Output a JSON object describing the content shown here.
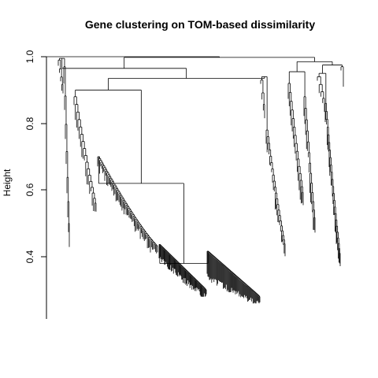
{
  "chart_data": {
    "type": "dendrogram",
    "title": "Gene clustering on TOM-based dissimilarity",
    "xlabel": "",
    "ylabel": "Height",
    "ylim": [
      0.2,
      1.0
    ],
    "yticks": [
      0.4,
      0.6,
      0.8,
      1.0
    ],
    "ytick_labels": [
      "0.4",
      "0.6",
      "0.8",
      "1.0"
    ],
    "grid": false,
    "legend": "none",
    "line_color": "#000000",
    "clusters": [
      {
        "name": "",
        "merge_height": 0.95,
        "floor": 0.45,
        "n_leaves": 14
      },
      {
        "name": "",
        "merge_height": 0.93,
        "floor": 0.28,
        "n_leaves": 240
      },
      {
        "name": "",
        "merge_height": 0.93,
        "floor": 0.43,
        "n_leaves": 40
      },
      {
        "name": "",
        "merge_height": 0.97,
        "floor": 0.49,
        "n_leaves": 45
      },
      {
        "name": "",
        "merge_height": 0.97,
        "floor": 0.4,
        "n_leaves": 35
      }
    ]
  }
}
